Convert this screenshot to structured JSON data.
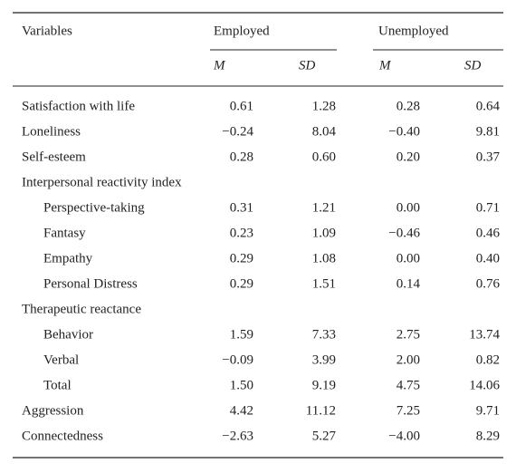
{
  "header": {
    "variables": "Variables",
    "groups": [
      {
        "name": "Employed",
        "columns": [
          "M",
          "SD"
        ]
      },
      {
        "name": "Unemployed",
        "columns": [
          "M",
          "SD"
        ]
      }
    ]
  },
  "rows": [
    {
      "label": "Satisfaction with life",
      "values": [
        "0.61",
        "1.28",
        "0.28",
        "0.64"
      ]
    },
    {
      "label": "Loneliness",
      "values": [
        "−0.24",
        "8.04",
        "−0.40",
        "9.81"
      ]
    },
    {
      "label": "Self-esteem",
      "values": [
        "0.28",
        "0.60",
        "0.20",
        "0.37"
      ]
    },
    {
      "label": "Interpersonal reactivity index",
      "items": [
        {
          "label": "Perspective-taking",
          "values": [
            "0.31",
            "1.21",
            "0.00",
            "0.71"
          ]
        },
        {
          "label": "Fantasy",
          "values": [
            "0.23",
            "1.09",
            "−0.46",
            "0.46"
          ]
        },
        {
          "label": "Empathy",
          "values": [
            "0.29",
            "1.08",
            "0.00",
            "0.40"
          ]
        },
        {
          "label": "Personal Distress",
          "values": [
            "0.29",
            "1.51",
            "0.14",
            "0.76"
          ]
        }
      ]
    },
    {
      "label": "Therapeutic reactance",
      "items": [
        {
          "label": "Behavior",
          "values": [
            "1.59",
            "7.33",
            "2.75",
            "13.74"
          ]
        },
        {
          "label": "Verbal",
          "values": [
            "−0.09",
            "3.99",
            "2.00",
            "0.82"
          ]
        },
        {
          "label": "Total",
          "values": [
            "1.50",
            "9.19",
            "4.75",
            "14.06"
          ]
        }
      ]
    },
    {
      "label": "Aggression",
      "values": [
        "4.42",
        "11.12",
        "7.25",
        "9.71"
      ]
    },
    {
      "label": "Connectedness",
      "values": [
        "−2.63",
        "5.27",
        "−4.00",
        "8.29"
      ]
    }
  ]
}
